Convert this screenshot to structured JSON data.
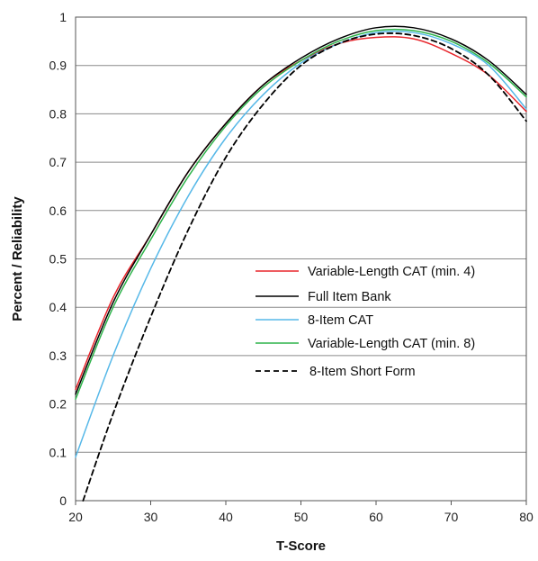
{
  "chart_data": {
    "type": "line",
    "title": "",
    "xlabel": "T-Score",
    "ylabel": "Percent / Reliability",
    "xlim": [
      20,
      80
    ],
    "ylim": [
      0,
      1
    ],
    "xticks": [
      "20",
      "30",
      "40",
      "50",
      "60",
      "70",
      "80"
    ],
    "yticks": [
      "0",
      "0.1",
      "0.2",
      "0.3",
      "0.4",
      "0.5",
      "0.6",
      "0.7",
      "0.8",
      "0.9",
      "1"
    ],
    "grid": "horizontal",
    "legend_position": "center-right",
    "series": [
      {
        "name": "Variable-Length CAT (min. 4)",
        "color": "#e8262c",
        "dash": "solid",
        "x": [
          20,
          25,
          30,
          35,
          40,
          45,
          50,
          55,
          60,
          65,
          70,
          75,
          80
        ],
        "y": [
          0.23,
          0.42,
          0.55,
          0.68,
          0.78,
          0.86,
          0.91,
          0.945,
          0.958,
          0.955,
          0.925,
          0.88,
          0.805
        ]
      },
      {
        "name": "Full Item Bank",
        "color": "#000000",
        "dash": "solid",
        "x": [
          20,
          25,
          30,
          35,
          40,
          45,
          50,
          55,
          60,
          65,
          70,
          75,
          80
        ],
        "y": [
          0.22,
          0.41,
          0.55,
          0.68,
          0.78,
          0.86,
          0.915,
          0.955,
          0.978,
          0.978,
          0.955,
          0.91,
          0.84
        ]
      },
      {
        "name": "8-Item CAT",
        "color": "#56b8e8",
        "dash": "solid",
        "x": [
          20,
          25,
          30,
          35,
          40,
          45,
          50,
          55,
          60,
          65,
          70,
          75,
          80
        ],
        "y": [
          0.09,
          0.3,
          0.48,
          0.63,
          0.75,
          0.84,
          0.905,
          0.945,
          0.968,
          0.968,
          0.945,
          0.9,
          0.81
        ]
      },
      {
        "name": "Variable-Length CAT (min. 8)",
        "color": "#2db34a",
        "dash": "solid",
        "x": [
          20,
          25,
          30,
          35,
          40,
          45,
          50,
          55,
          60,
          65,
          70,
          75,
          80
        ],
        "y": [
          0.21,
          0.4,
          0.54,
          0.67,
          0.775,
          0.855,
          0.91,
          0.95,
          0.972,
          0.972,
          0.95,
          0.905,
          0.835
        ]
      },
      {
        "name": "8-Item Short Form",
        "color": "#000000",
        "dash": "dashed",
        "x": [
          21,
          25,
          30,
          35,
          40,
          45,
          50,
          55,
          60,
          65,
          70,
          75,
          80
        ],
        "y": [
          0.0,
          0.18,
          0.38,
          0.56,
          0.71,
          0.82,
          0.9,
          0.945,
          0.965,
          0.962,
          0.935,
          0.88,
          0.785
        ]
      }
    ]
  }
}
